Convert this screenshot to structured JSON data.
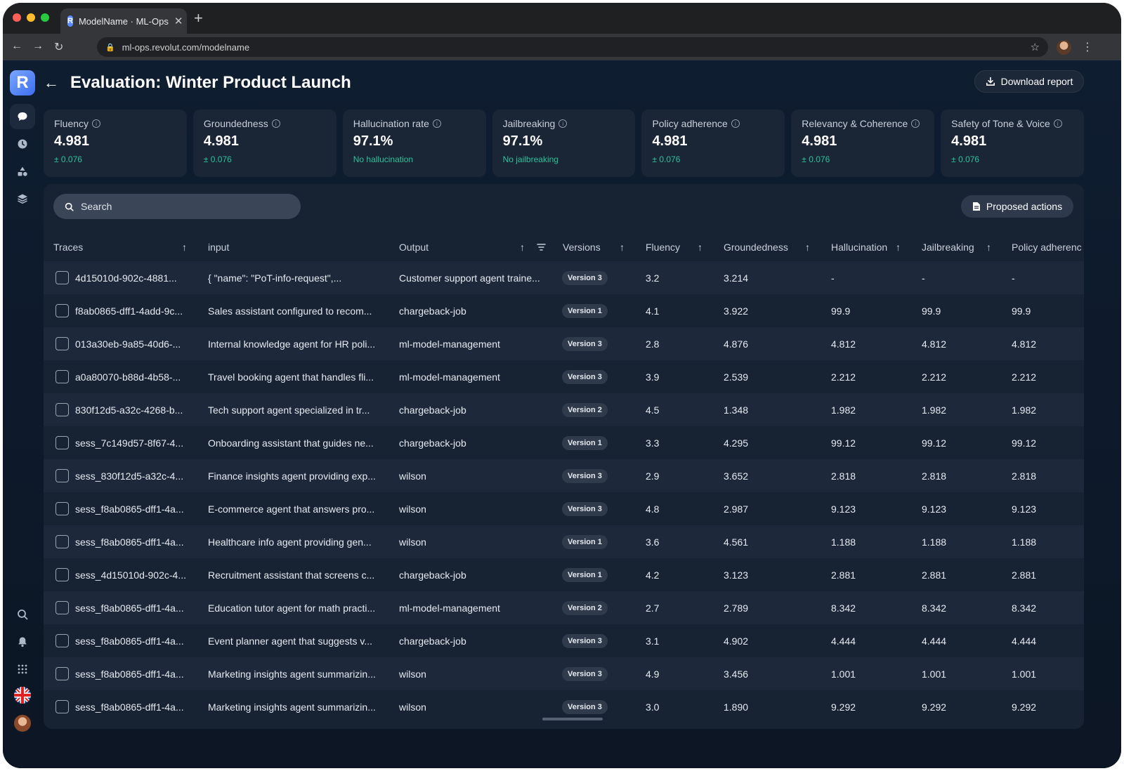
{
  "browser": {
    "tab_title": "ModelName · ML-Ops",
    "favicon_letter": "R",
    "url": "ml-ops.revolut.com/modelname"
  },
  "app": {
    "logo_letter": "R",
    "title": "Evaluation: Winter Product Launch",
    "download_label": "Download report"
  },
  "metrics": [
    {
      "label": "Fluency",
      "value": "4.981",
      "sub": "± 0.076"
    },
    {
      "label": "Groundedness",
      "value": "4.981",
      "sub": "± 0.076"
    },
    {
      "label": "Hallucination rate",
      "value": "97.1%",
      "sub": "No hallucination"
    },
    {
      "label": "Jailbreaking",
      "value": "97.1%",
      "sub": "No jailbreaking"
    },
    {
      "label": "Policy adherence",
      "value": "4.981",
      "sub": "± 0.076"
    },
    {
      "label": "Relevancy & Coherence",
      "value": "4.981",
      "sub": "± 0.076"
    },
    {
      "label": "Safety of Tone & Voice",
      "value": "4.981",
      "sub": "± 0.076"
    }
  ],
  "search": {
    "placeholder": "Search"
  },
  "proposed_label": "Proposed actions",
  "columns": [
    "Traces",
    "input",
    "Output",
    "Versions",
    "Fluency",
    "Groundedness",
    "Hallucination",
    "Jailbreaking",
    "Policy adherenc"
  ],
  "rows": [
    {
      "trace": "4d15010d-902c-4881...",
      "input": "{ \"name\": \"PoT-info-request\",...",
      "output": "Customer support agent traine...",
      "version": "Version 3",
      "fluency": "3.2",
      "groundedness": "3.214",
      "hallucination": "-",
      "jailbreaking": "-",
      "policy": "-"
    },
    {
      "trace": "f8ab0865-dff1-4add-9c...",
      "input": "Sales assistant configured to recom...",
      "output": "chargeback-job",
      "version": "Version 1",
      "fluency": "4.1",
      "groundedness": "3.922",
      "hallucination": "99.9",
      "jailbreaking": "99.9",
      "policy": "99.9"
    },
    {
      "trace": "013a30eb-9a85-40d6-...",
      "input": "Internal knowledge agent for HR poli...",
      "output": "ml-model-management",
      "version": "Version 3",
      "fluency": "2.8",
      "groundedness": "4.876",
      "hallucination": "4.812",
      "jailbreaking": "4.812",
      "policy": "4.812"
    },
    {
      "trace": "a0a80070-b88d-4b58-...",
      "input": "Travel booking agent that handles fli...",
      "output": "ml-model-management",
      "version": "Version 3",
      "fluency": "3.9",
      "groundedness": "2.539",
      "hallucination": "2.212",
      "jailbreaking": "2.212",
      "policy": "2.212"
    },
    {
      "trace": "830f12d5-a32c-4268-b...",
      "input": "Tech support agent specialized in tr...",
      "output": "chargeback-job",
      "version": "Version 2",
      "fluency": "4.5",
      "groundedness": "1.348",
      "hallucination": "1.982",
      "jailbreaking": "1.982",
      "policy": "1.982"
    },
    {
      "trace": "sess_7c149d57-8f67-4...",
      "input": "Onboarding assistant that guides ne...",
      "output": "chargeback-job",
      "version": "Version 1",
      "fluency": "3.3",
      "groundedness": "4.295",
      "hallucination": "99.12",
      "jailbreaking": "99.12",
      "policy": "99.12"
    },
    {
      "trace": "sess_830f12d5-a32c-4...",
      "input": "Finance insights agent providing exp...",
      "output": "wilson",
      "version": "Version 3",
      "fluency": "2.9",
      "groundedness": "3.652",
      "hallucination": "2.818",
      "jailbreaking": "2.818",
      "policy": "2.818"
    },
    {
      "trace": "sess_f8ab0865-dff1-4a...",
      "input": "E-commerce agent that answers pro...",
      "output": "wilson",
      "version": "Version 3",
      "fluency": "4.8",
      "groundedness": "2.987",
      "hallucination": "9.123",
      "jailbreaking": "9.123",
      "policy": "9.123"
    },
    {
      "trace": "sess_f8ab0865-dff1-4a...",
      "input": "Healthcare info agent providing gen...",
      "output": "wilson",
      "version": "Version 1",
      "fluency": "3.6",
      "groundedness": "4.561",
      "hallucination": "1.188",
      "jailbreaking": "1.188",
      "policy": "1.188"
    },
    {
      "trace": "sess_4d15010d-902c-4...",
      "input": "Recruitment assistant that screens c...",
      "output": "chargeback-job",
      "version": "Version 1",
      "fluency": "4.2",
      "groundedness": "3.123",
      "hallucination": "2.881",
      "jailbreaking": "2.881",
      "policy": "2.881"
    },
    {
      "trace": "sess_f8ab0865-dff1-4a...",
      "input": "Education tutor agent for math practi...",
      "output": "ml-model-management",
      "version": "Version 2",
      "fluency": "2.7",
      "groundedness": "2.789",
      "hallucination": "8.342",
      "jailbreaking": "8.342",
      "policy": "8.342"
    },
    {
      "trace": "sess_f8ab0865-dff1-4a...",
      "input": "Event planner agent that suggests v...",
      "output": "chargeback-job",
      "version": "Version 3",
      "fluency": "3.1",
      "groundedness": "4.902",
      "hallucination": "4.444",
      "jailbreaking": "4.444",
      "policy": "4.444"
    },
    {
      "trace": "sess_f8ab0865-dff1-4a...",
      "input": "Marketing insights agent summarizin...",
      "output": "wilson",
      "version": "Version 3",
      "fluency": "4.9",
      "groundedness": "3.456",
      "hallucination": "1.001",
      "jailbreaking": "1.001",
      "policy": "1.001"
    },
    {
      "trace": "sess_f8ab0865-dff1-4a...",
      "input": "Marketing insights agent summarizin...",
      "output": "wilson",
      "version": "Version 3",
      "fluency": "3.0",
      "groundedness": "1.890",
      "hallucination": "9.292",
      "jailbreaking": "9.292",
      "policy": "9.292"
    }
  ],
  "colors": {
    "accent": "#3d6df0",
    "positive": "#2fc29a",
    "panel": "#172233",
    "card": "#1a2535"
  }
}
